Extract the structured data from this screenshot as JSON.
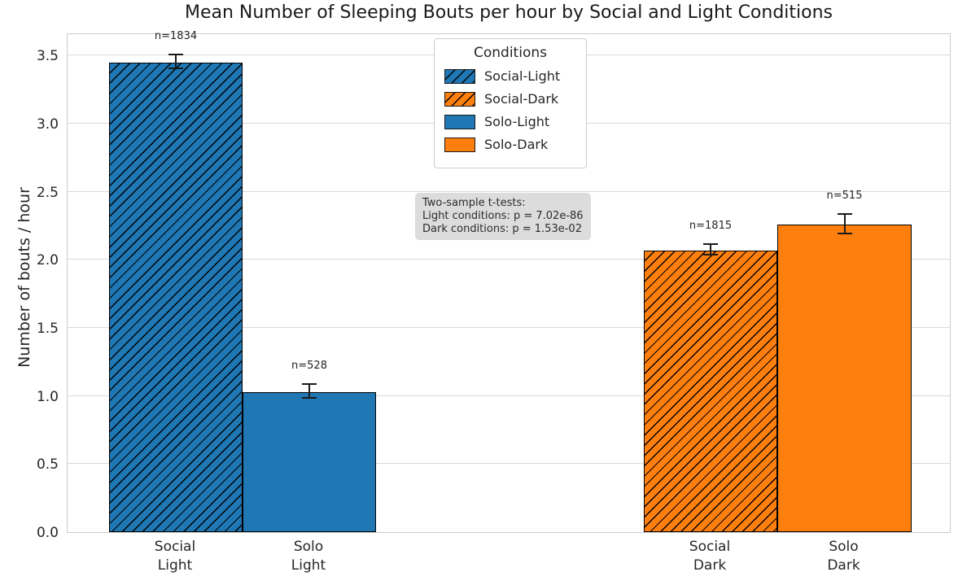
{
  "title": "Mean Number of Sleeping Bouts per hour by Social and Light Conditions",
  "axes": {
    "ylabel": "Number of bouts / hour",
    "yticks": [
      0.0,
      0.5,
      1.0,
      1.5,
      2.0,
      2.5,
      3.0,
      3.5
    ],
    "ytick_labels": [
      "0.0",
      "0.5",
      "1.0",
      "1.5",
      "2.0",
      "2.5",
      "3.0",
      "3.5"
    ]
  },
  "legend": {
    "title": "Conditions",
    "entries": [
      {
        "label": "Social-Light",
        "color": "#1f77b4",
        "hatched": true
      },
      {
        "label": "Social-Dark",
        "color": "#ff7f0e",
        "hatched": true
      },
      {
        "label": "Solo-Light",
        "color": "#1f77b4",
        "hatched": false
      },
      {
        "label": "Solo-Dark",
        "color": "#ff7f0e",
        "hatched": false
      }
    ]
  },
  "annotation": {
    "line1": "Two-sample t-tests:",
    "line2": "Light conditions: p = 7.02e-86",
    "line3": "Dark conditions: p = 1.53e-02"
  },
  "chart_data": {
    "type": "bar",
    "title": "Mean Number of Sleeping Bouts per hour by Social and Light Conditions",
    "ylabel": "Number of bouts / hour",
    "ylim": [
      0,
      3.67
    ],
    "grid": "horizontal",
    "legend_position": "upper center",
    "categories": [
      [
        "Social",
        "Light"
      ],
      [
        "Solo",
        "Light"
      ],
      [
        "Social",
        "Dark"
      ],
      [
        "Solo",
        "Dark"
      ]
    ],
    "series_labels": [
      "Social-Light",
      "Solo-Light",
      "Social-Dark",
      "Solo-Dark"
    ],
    "values": [
      3.45,
      1.03,
      2.07,
      2.26
    ],
    "errors": [
      0.05,
      0.05,
      0.04,
      0.07
    ],
    "counts": [
      1834,
      528,
      1815,
      515
    ],
    "n_labels": [
      "n=1834",
      "n=528",
      "n=1815",
      "n=515"
    ],
    "colors": [
      "#1f77b4",
      "#1f77b4",
      "#ff7f0e",
      "#ff7f0e"
    ],
    "hatched": [
      true,
      false,
      true,
      false
    ]
  }
}
